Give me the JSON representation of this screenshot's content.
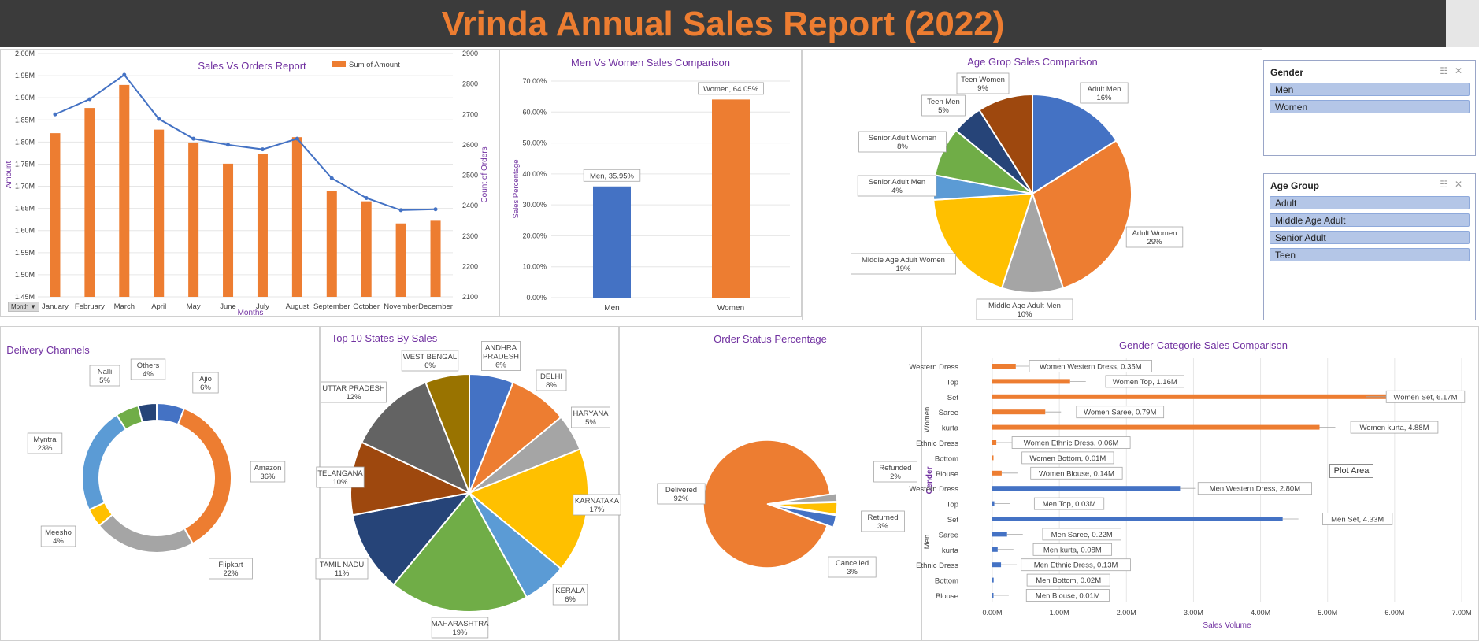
{
  "dashboard": {
    "title": "Vrinda Annual Sales Report (2022)",
    "colors": {
      "orange": "#ed7d31",
      "blue": "#4472c4",
      "purple": "#7030a0",
      "header": "#3b3b3b"
    }
  },
  "slicers": [
    {
      "title": "Gender",
      "items": [
        "Men",
        "Women"
      ]
    },
    {
      "title": "Age Group",
      "items": [
        "Adult",
        "Middle Age Adult",
        "Senior Adult",
        "Teen"
      ]
    }
  ],
  "filter_button": {
    "label": "Month"
  },
  "plot_area_tooltip": "Plot Area",
  "chart_data": [
    {
      "id": "sales-vs-orders",
      "type": "bar",
      "title": "Sales Vs Orders Report",
      "xlabel": "Months",
      "ylabel": "Amount",
      "y2label": "Count of Orders",
      "categories": [
        "January",
        "February",
        "March",
        "April",
        "May",
        "June",
        "July",
        "August",
        "September",
        "October",
        "November",
        "December"
      ],
      "series": [
        {
          "name": "Sum of Amount",
          "type": "bar",
          "axis": "left",
          "values": [
            1.82,
            1.877,
            1.929,
            1.828,
            1.799,
            1.751,
            1.773,
            1.811,
            1.689,
            1.666,
            1.616,
            1.622
          ]
        },
        {
          "type": "line",
          "axis": "right",
          "values": [
            2700,
            2750,
            2830,
            2685,
            2620,
            2600,
            2585,
            2620,
            2490,
            2425,
            2385,
            2388
          ]
        }
      ],
      "ylim": [
        1.45,
        2.0
      ],
      "yticks": [
        "1.45M",
        "1.50M",
        "1.55M",
        "1.60M",
        "1.65M",
        "1.70M",
        "1.75M",
        "1.80M",
        "1.85M",
        "1.90M",
        "1.95M",
        "2.00M"
      ],
      "y2lim": [
        2100,
        2900
      ],
      "y2ticks": [
        "2100",
        "2200",
        "2300",
        "2400",
        "2500",
        "2600",
        "2700",
        "2800",
        "2900"
      ],
      "legend": "top"
    },
    {
      "id": "men-vs-women",
      "type": "bar",
      "title": "Men Vs Women Sales Comparison",
      "ylabel": "Sales Percentage",
      "categories": [
        "Men",
        "Women"
      ],
      "values": [
        35.95,
        64.05
      ],
      "data_labels": [
        "Men, 35.95%",
        "Women, 64.05%"
      ],
      "ylim": [
        0,
        70
      ],
      "yticks": [
        "0.00%",
        "10.00%",
        "20.00%",
        "30.00%",
        "40.00%",
        "50.00%",
        "60.00%",
        "70.00%"
      ]
    },
    {
      "id": "age-group",
      "type": "pie",
      "title": "Age Grop Sales Comparison",
      "slices": [
        {
          "label": "Adult Men",
          "value": 16,
          "display": "16%",
          "color": "#4472c4"
        },
        {
          "label": "Adult Women",
          "value": 29,
          "display": "29%",
          "color": "#ed7d31"
        },
        {
          "label": "Middle Age Adult Men",
          "value": 10,
          "display": "10%",
          "color": "#a5a5a5"
        },
        {
          "label": "Middle Age Adult Women",
          "value": 19,
          "display": "19%",
          "color": "#ffc000"
        },
        {
          "label": "Senior Adult Men",
          "value": 4,
          "display": "4%",
          "color": "#5b9bd5"
        },
        {
          "label": "Senior Adult Women",
          "value": 8,
          "display": "8%",
          "color": "#70ad47"
        },
        {
          "label": "Teen Men",
          "value": 5,
          "display": "5%",
          "color": "#264478"
        },
        {
          "label": "Teen Women",
          "value": 9,
          "display": "9%",
          "color": "#9e480e"
        }
      ]
    },
    {
      "id": "delivery-channels",
      "type": "pie",
      "title": "Delivery Channels",
      "donut": true,
      "slices": [
        {
          "label": "Ajio",
          "value": 6,
          "display": "6%",
          "color": "#4472c4"
        },
        {
          "label": "Amazon",
          "value": 36,
          "display": "36%",
          "color": "#ed7d31"
        },
        {
          "label": "Flipkart",
          "value": 22,
          "display": "22%",
          "color": "#a5a5a5"
        },
        {
          "label": "Meesho",
          "value": 4,
          "display": "4%",
          "color": "#ffc000"
        },
        {
          "label": "Myntra",
          "value": 23,
          "display": "23%",
          "color": "#5b9bd5"
        },
        {
          "label": "Nalli",
          "value": 5,
          "display": "5%",
          "color": "#70ad47"
        },
        {
          "label": "Others",
          "value": 4,
          "display": "4%",
          "color": "#264478"
        }
      ]
    },
    {
      "id": "top-states",
      "type": "pie",
      "title": "Top 10 States By Sales",
      "slices": [
        {
          "label": "ANDHRA PRADESH",
          "value": 6,
          "display": "6%",
          "color": "#4472c4"
        },
        {
          "label": "DELHI",
          "value": 8,
          "display": "8%",
          "color": "#ed7d31"
        },
        {
          "label": "HARYANA",
          "value": 5,
          "display": "5%",
          "color": "#a5a5a5"
        },
        {
          "label": "KARNATAKA",
          "value": 17,
          "display": "17%",
          "color": "#ffc000"
        },
        {
          "label": "KERALA",
          "value": 6,
          "display": "6%",
          "color": "#5b9bd5"
        },
        {
          "label": "MAHARASHTRA",
          "value": 19,
          "display": "19%",
          "color": "#70ad47"
        },
        {
          "label": "TAMIL NADU",
          "value": 11,
          "display": "11%",
          "color": "#264478"
        },
        {
          "label": "TELANGANA",
          "value": 10,
          "display": "10%",
          "color": "#9e480e"
        },
        {
          "label": "UTTAR PRADESH",
          "value": 12,
          "display": "12%",
          "color": "#636363"
        },
        {
          "label": "WEST BENGAL",
          "value": 6,
          "display": "6%",
          "color": "#997300"
        }
      ]
    },
    {
      "id": "order-status",
      "type": "pie",
      "title": "Order Status Percentage",
      "slices": [
        {
          "label": "Refunded",
          "value": 2,
          "display": "2%",
          "color": "#a5a5a5"
        },
        {
          "label": "Returned",
          "value": 3,
          "display": "3%",
          "color": "#ffc000"
        },
        {
          "label": "Cancelled",
          "value": 3,
          "display": "3%",
          "color": "#4472c4"
        },
        {
          "label": "Delivered",
          "value": 92,
          "display": "92%",
          "color": "#ed7d31"
        }
      ]
    },
    {
      "id": "gender-category",
      "type": "bar",
      "orientation": "horizontal",
      "title": "Gender-Categorie Sales Comparison",
      "xlabel": "Sales Volume",
      "ylabel": "Gender",
      "groups": [
        "Women",
        "Men"
      ],
      "categories": [
        "Western Dress",
        "Top",
        "Set",
        "Saree",
        "kurta",
        "Ethnic Dress",
        "Bottom",
        "Blouse"
      ],
      "series": [
        {
          "name": "Women",
          "values": [
            0.35,
            1.16,
            6.17,
            0.79,
            4.88,
            0.06,
            0.01,
            0.14
          ],
          "labels": [
            "Women Western Dress, 0.35M",
            "Women Top, 1.16M",
            "Women Set, 6.17M",
            "Women Saree, 0.79M",
            "Women kurta, 4.88M",
            "Women Ethnic Dress, 0.06M",
            "Women Bottom, 0.01M",
            "Women Blouse, 0.14M"
          ]
        },
        {
          "name": "Men",
          "values": [
            2.8,
            0.03,
            4.33,
            0.22,
            0.08,
            0.13,
            0.02,
            0.01
          ],
          "labels": [
            "Men Western Dress, 2.80M",
            "Men Top, 0.03M",
            "Men Set, 4.33M",
            "Men Saree, 0.22M",
            "Men kurta, 0.08M",
            "Men Ethnic Dress, 0.13M",
            "Men Bottom, 0.02M",
            "Men Blouse, 0.01M"
          ]
        }
      ],
      "xlim": [
        0,
        7
      ],
      "xticks": [
        "0.00M",
        "1.00M",
        "2.00M",
        "3.00M",
        "4.00M",
        "5.00M",
        "6.00M",
        "7.00M"
      ]
    }
  ]
}
